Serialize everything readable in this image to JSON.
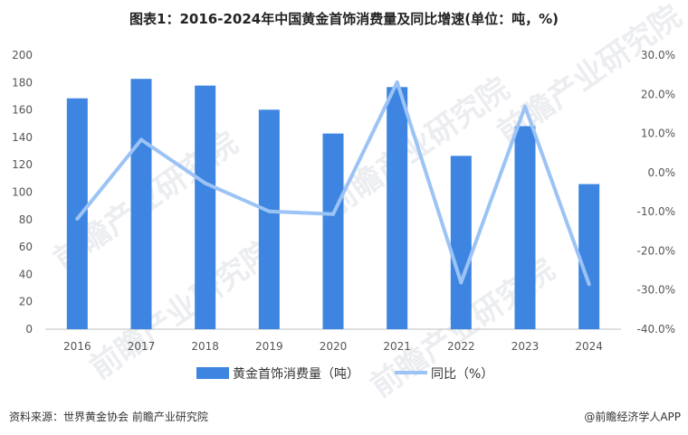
{
  "title": "图表1：2016-2024年中国黄金首饰消费量及同比增速(单位：吨，%)",
  "source": "资料来源：世界黄金协会 前瞻产业研究院",
  "brand": "@前瞻经济学人APP",
  "watermark": "前瞻产业研究院",
  "colors": {
    "bar": "#3d85e0",
    "line": "#9cc3f5"
  },
  "chart_data": {
    "type": "bar",
    "categories": [
      "2016",
      "2017",
      "2018",
      "2019",
      "2020",
      "2021",
      "2022",
      "2023",
      "2024"
    ],
    "series": [
      {
        "name": "黄金首饰消费量（吨）",
        "type": "bar",
        "axis": "left",
        "values": [
          168.5,
          182.7,
          177.8,
          160.2,
          142.8,
          176.7,
          126.5,
          148.2,
          105.9
        ]
      },
      {
        "name": "同比（%）",
        "type": "line",
        "axis": "right",
        "values": [
          -11.8,
          8.4,
          -2.7,
          -9.9,
          -10.6,
          23.1,
          -28.1,
          16.9,
          -28.5
        ]
      }
    ],
    "ylim_left": [
      0,
      200
    ],
    "ylim_right": [
      -40,
      30
    ],
    "left_ticks": [
      "0",
      "20",
      "40",
      "60",
      "80",
      "100",
      "120",
      "140",
      "160",
      "180",
      "200"
    ],
    "right_ticks": [
      "-40.0%",
      "-30.0%",
      "-20.0%",
      "-10.0%",
      "0.0%",
      "10.0%",
      "20.0%",
      "30.0%"
    ],
    "legend_position": "bottom-center",
    "grid": false
  }
}
